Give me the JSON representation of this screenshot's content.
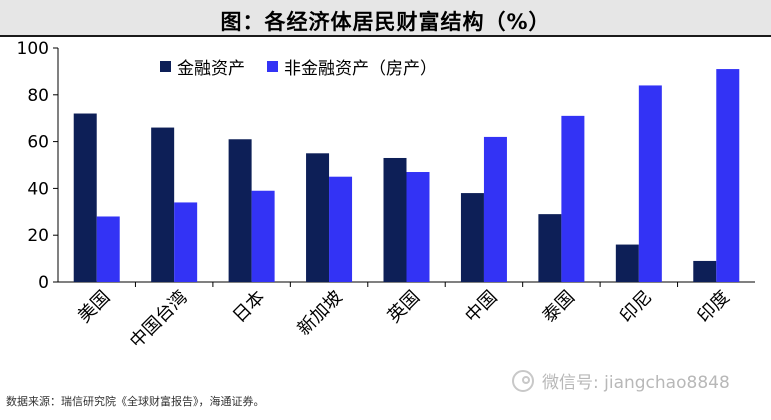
{
  "title": "图：各经济体居民财富结构（%）",
  "source": "数据来源：瑞信研究院《全球财富报告》，海通证券。",
  "watermark": "微信号: jiangchao8848",
  "colors": {
    "financial": "#0d1f57",
    "non_financial": "#3333f5"
  },
  "chart_data": {
    "type": "bar",
    "title": "图：各经济体居民财富结构（%）",
    "categories": [
      "美国",
      "中国台湾",
      "日本",
      "新加坡",
      "英国",
      "中国",
      "泰国",
      "印尼",
      "印度"
    ],
    "series": [
      {
        "name": "金融资产",
        "values": [
          72,
          66,
          61,
          55,
          53,
          38,
          29,
          16,
          9
        ]
      },
      {
        "name": "非金融资产（房产）",
        "values": [
          28,
          34,
          39,
          45,
          47,
          62,
          71,
          84,
          91
        ]
      }
    ],
    "ylim": [
      0,
      100
    ],
    "yticks": [
      0,
      20,
      40,
      60,
      80,
      100
    ],
    "grid": false,
    "legend": "top"
  }
}
